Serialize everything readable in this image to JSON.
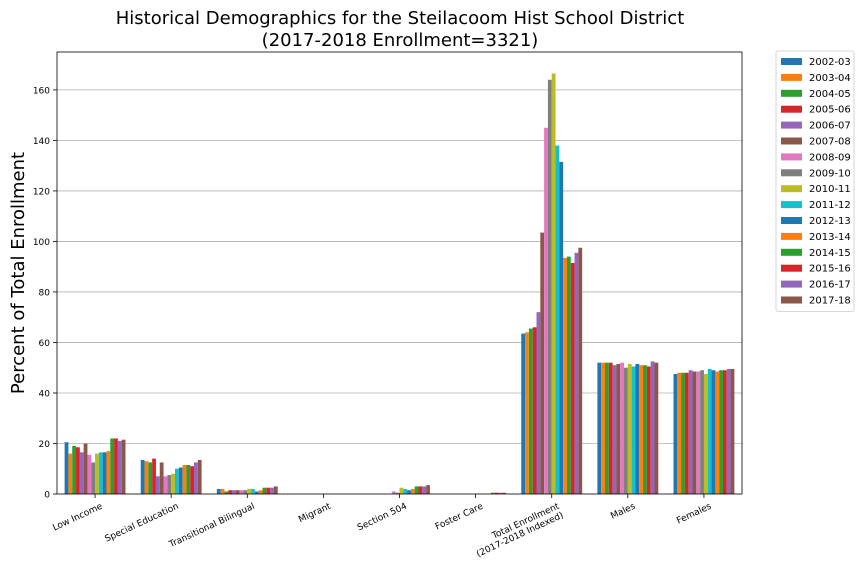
{
  "chart_data": {
    "type": "bar",
    "title_line1": "Historical Demographics for the Steilacoom Hist School District",
    "title_line2": "(2017-2018 Enrollment=3321)",
    "xlabel": "",
    "ylabel": "Percent of Total Enrollment",
    "ylim": [
      0,
      175
    ],
    "yticks": [
      0,
      20,
      40,
      60,
      80,
      100,
      120,
      140,
      160
    ],
    "grid": "horizontal",
    "legend_position": "outside-right",
    "categories": [
      [
        "Low Income"
      ],
      [
        "Special Education"
      ],
      [
        "Transitional Bilingual"
      ],
      [
        "Migrant"
      ],
      [
        "Section 504"
      ],
      [
        "Foster Care"
      ],
      [
        "Total Enrollment",
        "(2017-2018 Indexed)"
      ],
      [
        "Males"
      ],
      [
        "Females"
      ]
    ],
    "series": [
      {
        "name": "2002-03",
        "color": "#1f77b4",
        "values": [
          20.5,
          13.5,
          2.0,
          0,
          0,
          0,
          63.5,
          52.0,
          47.5
        ]
      },
      {
        "name": "2003-04",
        "color": "#ff7f0e",
        "values": [
          16.0,
          13.0,
          2.0,
          0,
          0,
          0,
          64.0,
          52.0,
          48.0
        ]
      },
      {
        "name": "2004-05",
        "color": "#2ca02c",
        "values": [
          19.0,
          12.5,
          1.0,
          0,
          0,
          0,
          65.5,
          52.0,
          48.0
        ]
      },
      {
        "name": "2005-06",
        "color": "#d62728",
        "values": [
          18.5,
          14.0,
          1.5,
          0,
          0,
          0,
          66.0,
          52.0,
          48.0
        ]
      },
      {
        "name": "2006-07",
        "color": "#9467bd",
        "values": [
          16.5,
          7.0,
          1.5,
          0,
          0,
          0,
          72.0,
          51.0,
          49.0
        ]
      },
      {
        "name": "2007-08",
        "color": "#8c564b",
        "values": [
          20.0,
          12.5,
          1.5,
          0,
          0,
          0,
          103.5,
          51.5,
          48.5
        ]
      },
      {
        "name": "2008-09",
        "color": "#e377c2",
        "values": [
          15.5,
          7.0,
          1.5,
          0,
          1.0,
          0,
          145.0,
          52.0,
          48.5
        ]
      },
      {
        "name": "2009-10",
        "color": "#7f7f7f",
        "values": [
          12.5,
          7.5,
          1.5,
          0,
          0.5,
          0,
          164.0,
          50.0,
          49.0
        ]
      },
      {
        "name": "2010-11",
        "color": "#bcbd22",
        "values": [
          16.0,
          8.0,
          2.0,
          0,
          2.5,
          0,
          166.5,
          51.5,
          47.5
        ]
      },
      {
        "name": "2011-12",
        "color": "#17becf",
        "values": [
          16.5,
          10.0,
          2.0,
          0,
          2.0,
          0,
          138.0,
          50.5,
          49.5
        ]
      },
      {
        "name": "2012-13",
        "color": "#1f77b4",
        "values": [
          16.5,
          10.5,
          1.0,
          0,
          1.5,
          0,
          131.5,
          51.5,
          49.0
        ]
      },
      {
        "name": "2013-14",
        "color": "#ff7f0e",
        "values": [
          17.0,
          11.5,
          1.5,
          0,
          2.0,
          0,
          93.5,
          51.0,
          48.5
        ]
      },
      {
        "name": "2014-15",
        "color": "#2ca02c",
        "values": [
          22.0,
          11.5,
          2.5,
          0,
          3.0,
          0.5,
          94.0,
          51.0,
          49.0
        ]
      },
      {
        "name": "2015-16",
        "color": "#d62728",
        "values": [
          22.0,
          11.0,
          2.5,
          0,
          3.0,
          0.5,
          91.5,
          50.5,
          49.0
        ]
      },
      {
        "name": "2016-17",
        "color": "#9467bd",
        "values": [
          21.0,
          12.5,
          2.5,
          0,
          3.0,
          0.5,
          95.5,
          52.5,
          49.5
        ]
      },
      {
        "name": "2017-18",
        "color": "#8c564b",
        "values": [
          21.5,
          13.5,
          3.0,
          0,
          3.5,
          0.5,
          97.5,
          52.0,
          49.5
        ]
      }
    ],
    "extra_overlay_note": ""
  }
}
